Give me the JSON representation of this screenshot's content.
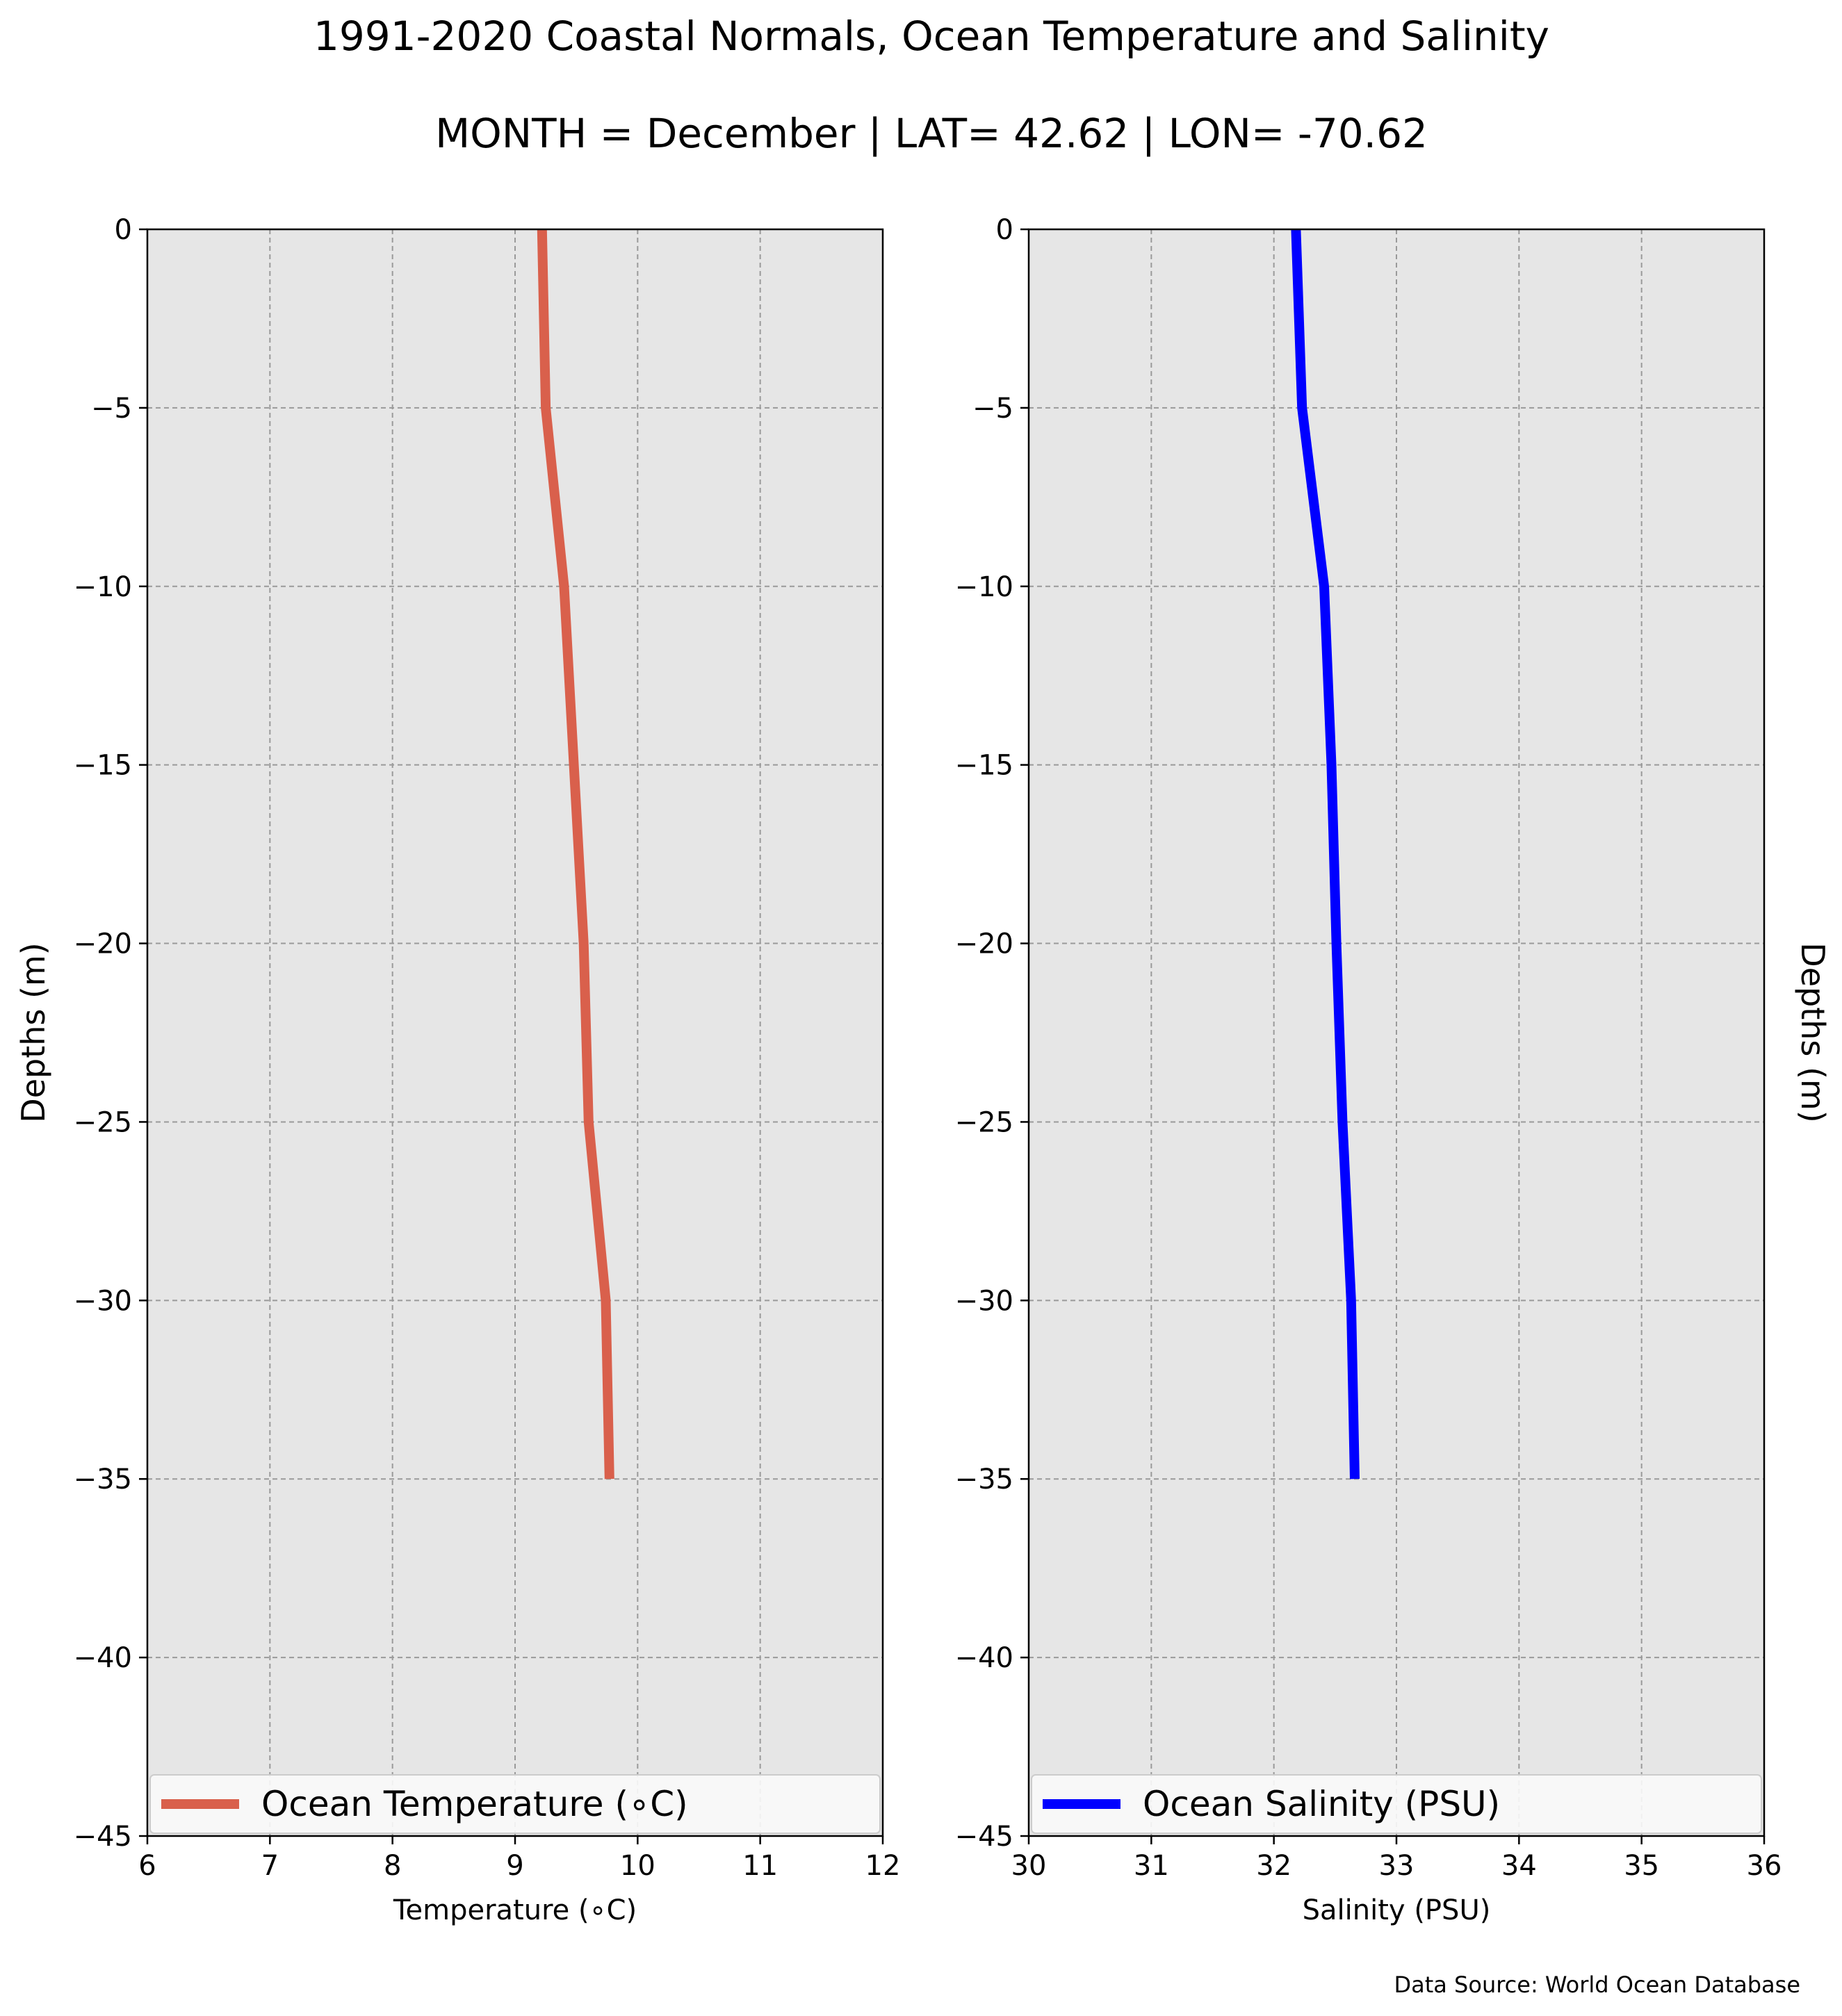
{
  "title": "1991-2020 Coastal Normals, Ocean Temperature and Salinity",
  "subtitle": "MONTH = December | LAT= 42.62 | LON= -70.62",
  "source": "Data Source: World Ocean Database",
  "chart_data": [
    {
      "type": "line",
      "xlabel": "Temperature (∘C)",
      "ylabel": "Depths (m)",
      "ylabel_side": "left",
      "xlim": [
        6,
        12
      ],
      "ylim": [
        -45,
        0
      ],
      "xticks": [
        6,
        7,
        8,
        9,
        10,
        11,
        12
      ],
      "yticks": [
        0,
        -5,
        -10,
        -15,
        -20,
        -25,
        -30,
        -35,
        -40,
        -45
      ],
      "grid": true,
      "legend_position": "bottom",
      "series": [
        {
          "name": "Ocean Temperature (∘C)",
          "color": "#d9604c",
          "x": [
            9.22,
            9.25,
            9.4,
            9.48,
            9.56,
            9.6,
            9.74,
            9.77
          ],
          "y": [
            0,
            -5,
            -10,
            -15,
            -20,
            -25,
            -30,
            -35
          ]
        }
      ]
    },
    {
      "type": "line",
      "xlabel": "Salinity (PSU)",
      "ylabel": "Depths (m)",
      "ylabel_side": "right",
      "xlim": [
        30,
        36
      ],
      "ylim": [
        -45,
        0
      ],
      "xticks": [
        30,
        31,
        32,
        33,
        34,
        35,
        36
      ],
      "yticks": [
        0,
        -5,
        -10,
        -15,
        -20,
        -25,
        -30,
        -35,
        -40,
        -45
      ],
      "grid": true,
      "legend_position": "bottom",
      "series": [
        {
          "name": "Ocean Salinity (PSU)",
          "color": "#0000ff",
          "x": [
            32.18,
            32.23,
            32.41,
            32.47,
            32.51,
            32.56,
            32.63,
            32.66
          ],
          "y": [
            0,
            -5,
            -10,
            -15,
            -20,
            -25,
            -30,
            -35
          ]
        }
      ]
    }
  ]
}
